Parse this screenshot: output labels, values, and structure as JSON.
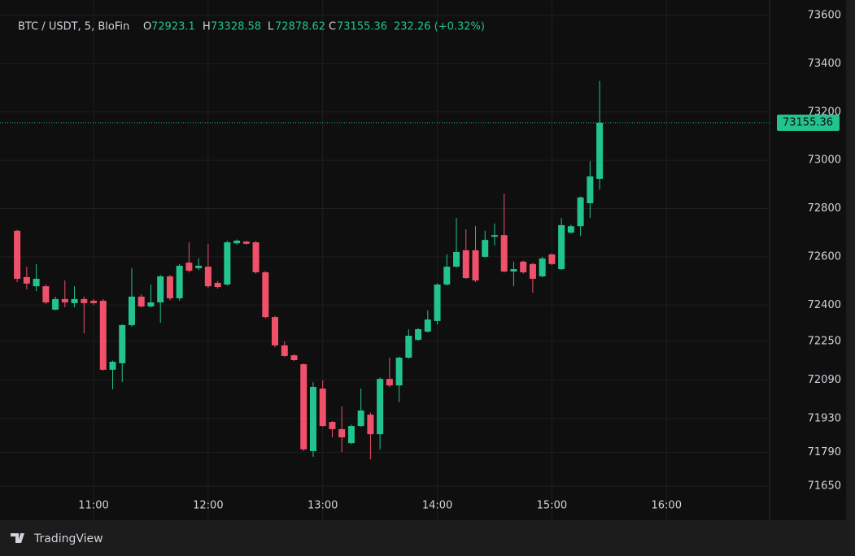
{
  "chart_data": {
    "type": "candlestick",
    "symbol": "BTC / USDT, 5, BloFin",
    "ohlc_labels": [
      "O",
      "H",
      "L",
      "C"
    ],
    "change_label": "232.26 (+0.32%)",
    "brand": "TradingView",
    "up_color": "#22c38e",
    "down_color": "#f0506a",
    "grid": true,
    "x": [
      "10:20",
      "10:25",
      "10:30",
      "10:35",
      "10:40",
      "10:45",
      "10:50",
      "10:55",
      "11:00",
      "11:05",
      "11:10",
      "11:15",
      "11:20",
      "11:25",
      "11:30",
      "11:35",
      "11:40",
      "11:45",
      "11:50",
      "11:55",
      "12:00",
      "12:05",
      "12:10",
      "12:15",
      "12:20",
      "12:25",
      "12:30",
      "12:35",
      "12:40",
      "12:45",
      "12:50",
      "12:55",
      "13:00",
      "13:05",
      "13:10",
      "13:15",
      "13:20",
      "13:25",
      "13:30",
      "13:35",
      "13:40",
      "13:45",
      "13:50",
      "13:55",
      "14:00",
      "14:05",
      "14:10",
      "14:15",
      "14:20",
      "14:25",
      "14:30",
      "14:35",
      "14:40",
      "14:45",
      "14:50",
      "14:55",
      "15:00",
      "15:05",
      "15:10",
      "15:15",
      "15:20",
      "15:25"
    ],
    "open": [
      72708,
      72516,
      72478,
      72478,
      72381,
      72425,
      72408,
      72425,
      72418,
      72418,
      72132,
      72159,
      72317,
      72435,
      72394,
      72411,
      72519,
      72428,
      72576,
      72553,
      72559,
      72492,
      72485,
      72656,
      72663,
      72660,
      72536,
      72350,
      72233,
      72192,
      72155,
      71795,
      72054,
      71916,
      71886,
      71828,
      71899,
      71946,
      71865,
      72094,
      72067,
      72182,
      72256,
      72290,
      72334,
      72485,
      72559,
      72627,
      72627,
      72600,
      72683,
      72690,
      72539,
      72580,
      72570,
      72519,
      72610,
      72549,
      72700,
      72727,
      72822,
      72923.1
    ],
    "high": [
      72712,
      72559,
      72569,
      72485,
      72435,
      72502,
      72478,
      72435,
      72425,
      72425,
      72170,
      72320,
      72553,
      72445,
      72485,
      72525,
      72525,
      72570,
      72660,
      72593,
      72654,
      72500,
      72667,
      72672,
      72667,
      72665,
      72540,
      72355,
      72250,
      72196,
      72158,
      72081,
      72088,
      71920,
      71980,
      71905,
      72054,
      71955,
      72100,
      72182,
      72186,
      72300,
      72305,
      72378,
      72490,
      72610,
      72761,
      72714,
      72727,
      72708,
      72738,
      72862,
      72580,
      72584,
      72575,
      72600,
      72614,
      72761,
      72733,
      72850,
      72997,
      73328.58
    ],
    "low": [
      72495,
      72465,
      72458,
      72405,
      72378,
      72391,
      72391,
      72283,
      72401,
      72128,
      72051,
      72081,
      72310,
      72390,
      72390,
      72327,
      72420,
      72418,
      72535,
      72545,
      72470,
      72468,
      72480,
      72650,
      72650,
      72530,
      72345,
      72225,
      72185,
      72168,
      71795,
      71771,
      71895,
      71852,
      71791,
      71824,
      71895,
      71761,
      71802,
      72060,
      71997,
      72178,
      72252,
      72286,
      72320,
      72480,
      72555,
      72508,
      72495,
      72596,
      72647,
      72535,
      72478,
      72530,
      72451,
      72515,
      72566,
      72545,
      72696,
      72687,
      72761,
      72878.62
    ],
    "close": [
      72509,
      72489,
      72509,
      72411,
      72425,
      72411,
      72425,
      72408,
      72408,
      72132,
      72165,
      72317,
      72435,
      72394,
      72411,
      72519,
      72428,
      72563,
      72542,
      72563,
      72478,
      72475,
      72660,
      72667,
      72654,
      72536,
      72350,
      72233,
      72189,
      72172,
      71802,
      72061,
      71899,
      71886,
      71852,
      71899,
      71963,
      71865,
      72094,
      72067,
      72182,
      72273,
      72300,
      72340,
      72485,
      72559,
      72620,
      72512,
      72502,
      72670,
      72690,
      72539,
      72549,
      72536,
      72509,
      72593,
      72570,
      72731,
      72727,
      72846,
      72933,
      73155.36
    ],
    "xlim": [
      "10:11",
      "16:54"
    ],
    "xticks": [
      "11:00",
      "12:00",
      "13:00",
      "14:00",
      "15:00",
      "16:00"
    ],
    "ylim": [
      71623,
      73664
    ],
    "yticks": [
      73600,
      73400,
      73200,
      73000,
      72800,
      72600,
      72400,
      72250,
      72090,
      71930,
      71790,
      71650
    ]
  }
}
